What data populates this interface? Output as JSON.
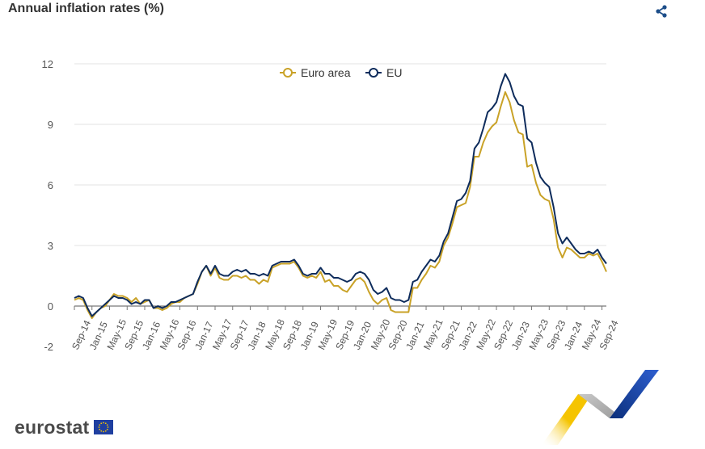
{
  "chart_data": {
    "type": "line",
    "title": "Annual inflation rates (%)",
    "xlabel": "",
    "ylabel": "",
    "ylim": [
      -2,
      12
    ],
    "yticks": [
      12,
      9,
      6,
      3,
      0,
      -2
    ],
    "grid": true,
    "legend_position": "top-center",
    "x_tick_labels": [
      "Sep-14",
      "Jan-15",
      "May-15",
      "Sep-15",
      "Jan-16",
      "May-16",
      "Sep-16",
      "Jan-17",
      "May-17",
      "Sep-17",
      "Jan-18",
      "May-18",
      "Sep-18",
      "Jan-19",
      "May-19",
      "Sep-19",
      "Jan-20",
      "May-20",
      "Sep-20",
      "Jan-21",
      "May-21",
      "Sep-21",
      "Jan-22",
      "May-22",
      "Sep-22",
      "Jan-23",
      "May-23",
      "Sep-23",
      "Jan-24",
      "May-24",
      "Sep-24"
    ],
    "x_start": "2014-09",
    "series": [
      {
        "name": "Euro area",
        "color": "#C9A227",
        "values": [
          0.3,
          0.4,
          0.3,
          -0.2,
          -0.6,
          -0.3,
          -0.1,
          0.0,
          0.3,
          0.6,
          0.5,
          0.5,
          0.4,
          0.2,
          0.4,
          0.1,
          0.2,
          0.3,
          -0.1,
          -0.1,
          -0.2,
          -0.1,
          0.1,
          0.2,
          0.2,
          0.4,
          0.5,
          0.6,
          1.1,
          1.7,
          2.0,
          1.5,
          1.9,
          1.4,
          1.3,
          1.3,
          1.5,
          1.5,
          1.4,
          1.5,
          1.3,
          1.3,
          1.1,
          1.3,
          1.2,
          1.9,
          2.0,
          2.1,
          2.1,
          2.1,
          2.2,
          1.9,
          1.5,
          1.4,
          1.5,
          1.4,
          1.7,
          1.2,
          1.3,
          1.0,
          1.0,
          0.8,
          0.7,
          1.0,
          1.3,
          1.4,
          1.2,
          0.7,
          0.3,
          0.1,
          0.3,
          0.4,
          -0.2,
          -0.3,
          -0.3,
          -0.3,
          -0.3,
          0.9,
          0.9,
          1.3,
          1.6,
          2.0,
          1.9,
          2.2,
          3.0,
          3.4,
          4.1,
          4.9,
          5.0,
          5.1,
          5.9,
          7.4,
          7.4,
          8.1,
          8.6,
          8.9,
          9.1,
          9.9,
          10.6,
          10.1,
          9.2,
          8.6,
          8.5,
          6.9,
          7.0,
          6.1,
          5.5,
          5.3,
          5.2,
          4.3,
          2.9,
          2.4,
          2.9,
          2.8,
          2.6,
          2.4,
          2.4,
          2.6,
          2.5,
          2.6,
          2.2,
          1.7
        ]
      },
      {
        "name": "EU",
        "color": "#0E2C5C",
        "values": [
          0.4,
          0.5,
          0.4,
          -0.1,
          -0.5,
          -0.3,
          -0.1,
          0.1,
          0.3,
          0.5,
          0.4,
          0.4,
          0.3,
          0.1,
          0.2,
          0.1,
          0.3,
          0.3,
          -0.1,
          0.0,
          -0.1,
          0.0,
          0.2,
          0.2,
          0.3,
          0.4,
          0.5,
          0.6,
          1.2,
          1.7,
          2.0,
          1.6,
          2.0,
          1.6,
          1.5,
          1.5,
          1.7,
          1.8,
          1.7,
          1.8,
          1.6,
          1.6,
          1.5,
          1.6,
          1.5,
          2.0,
          2.1,
          2.2,
          2.2,
          2.2,
          2.3,
          2.0,
          1.6,
          1.5,
          1.6,
          1.6,
          1.9,
          1.6,
          1.6,
          1.4,
          1.4,
          1.3,
          1.2,
          1.3,
          1.6,
          1.7,
          1.6,
          1.3,
          0.8,
          0.6,
          0.7,
          0.9,
          0.4,
          0.3,
          0.3,
          0.2,
          0.3,
          1.2,
          1.3,
          1.7,
          2.0,
          2.3,
          2.2,
          2.5,
          3.2,
          3.6,
          4.4,
          5.2,
          5.3,
          5.6,
          6.2,
          7.8,
          8.1,
          8.8,
          9.6,
          9.8,
          10.1,
          10.9,
          11.5,
          11.1,
          10.4,
          10.0,
          9.9,
          8.3,
          8.1,
          7.1,
          6.4,
          6.1,
          5.9,
          4.9,
          3.6,
          3.1,
          3.4,
          3.1,
          2.8,
          2.6,
          2.6,
          2.7,
          2.6,
          2.8,
          2.4,
          2.1
        ]
      }
    ]
  },
  "icons": {
    "share": "share-icon",
    "flag": "eu-flag-icon"
  },
  "branding": {
    "logo_text": "eurostat"
  }
}
